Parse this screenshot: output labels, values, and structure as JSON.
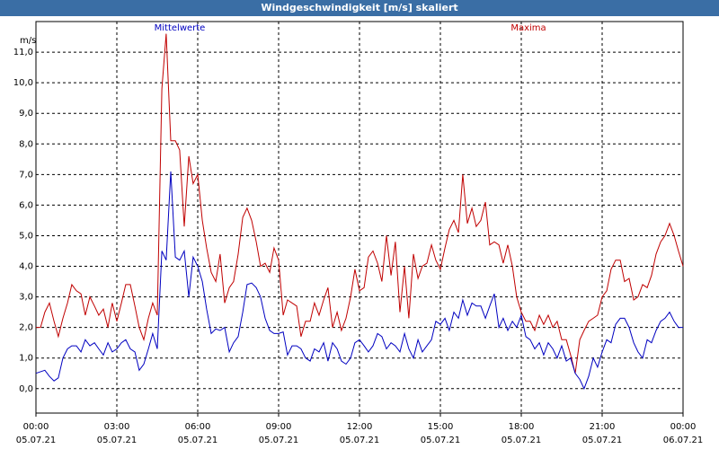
{
  "window": {
    "title": "Windgeschwindigkeit [m/s] skaliert"
  },
  "chart_data": {
    "type": "line",
    "title": "Windgeschwindigkeit [m/s] skaliert",
    "ylabel": "m/s",
    "ylim": [
      -0.8,
      12.0
    ],
    "yticks": [
      "0,0",
      "1,0",
      "2,0",
      "3,0",
      "4,0",
      "5,0",
      "6,0",
      "7,0",
      "8,0",
      "9,0",
      "10,0",
      "11,0"
    ],
    "ytick_values": [
      0,
      1,
      2,
      3,
      4,
      5,
      6,
      7,
      8,
      9,
      10,
      11
    ],
    "xlim": [
      0,
      24
    ],
    "xticks": [
      {
        "x": 0,
        "time": "00:00",
        "date": "05.07.21"
      },
      {
        "x": 3,
        "time": "03:00",
        "date": "05.07.21"
      },
      {
        "x": 6,
        "time": "06:00",
        "date": "05.07.21"
      },
      {
        "x": 9,
        "time": "09:00",
        "date": "05.07.21"
      },
      {
        "x": 12,
        "time": "12:00",
        "date": "05.07.21"
      },
      {
        "x": 15,
        "time": "15:00",
        "date": "05.07.21"
      },
      {
        "x": 18,
        "time": "18:00",
        "date": "05.07.21"
      },
      {
        "x": 21,
        "time": "21:00",
        "date": "05.07.21"
      },
      {
        "x": 24,
        "time": "00:00",
        "date": "06.07.21"
      }
    ],
    "grid": true,
    "series": [
      {
        "name": "Mittelwerte",
        "color": "#0000c0",
        "points": [
          [
            0,
            0.5
          ],
          [
            0.33,
            0.6
          ],
          [
            0.5,
            0.4
          ],
          [
            0.67,
            0.25
          ],
          [
            0.83,
            0.35
          ],
          [
            1.0,
            1.0
          ],
          [
            1.17,
            1.3
          ],
          [
            1.33,
            1.4
          ],
          [
            1.5,
            1.4
          ],
          [
            1.67,
            1.2
          ],
          [
            1.83,
            1.6
          ],
          [
            2.0,
            1.4
          ],
          [
            2.17,
            1.5
          ],
          [
            2.33,
            1.3
          ],
          [
            2.5,
            1.1
          ],
          [
            2.67,
            1.5
          ],
          [
            2.83,
            1.2
          ],
          [
            3.0,
            1.3
          ],
          [
            3.17,
            1.5
          ],
          [
            3.33,
            1.6
          ],
          [
            3.5,
            1.3
          ],
          [
            3.67,
            1.2
          ],
          [
            3.83,
            0.6
          ],
          [
            4.0,
            0.8
          ],
          [
            4.17,
            1.3
          ],
          [
            4.33,
            1.8
          ],
          [
            4.5,
            1.3
          ],
          [
            4.67,
            4.5
          ],
          [
            4.83,
            4.2
          ],
          [
            5.0,
            7.1
          ],
          [
            5.17,
            4.3
          ],
          [
            5.33,
            4.2
          ],
          [
            5.5,
            4.5
          ],
          [
            5.67,
            3.0
          ],
          [
            5.83,
            4.3
          ],
          [
            6.0,
            4.0
          ],
          [
            6.17,
            3.5
          ],
          [
            6.33,
            2.6
          ],
          [
            6.5,
            1.8
          ],
          [
            6.67,
            1.95
          ],
          [
            6.83,
            1.9
          ],
          [
            7.0,
            2.0
          ],
          [
            7.17,
            1.2
          ],
          [
            7.33,
            1.5
          ],
          [
            7.5,
            1.7
          ],
          [
            7.67,
            2.5
          ],
          [
            7.83,
            3.4
          ],
          [
            8.0,
            3.45
          ],
          [
            8.17,
            3.3
          ],
          [
            8.33,
            3.0
          ],
          [
            8.5,
            2.3
          ],
          [
            8.67,
            1.9
          ],
          [
            8.83,
            1.8
          ],
          [
            9.0,
            1.8
          ],
          [
            9.17,
            1.85
          ],
          [
            9.33,
            1.1
          ],
          [
            9.5,
            1.4
          ],
          [
            9.67,
            1.4
          ],
          [
            9.83,
            1.3
          ],
          [
            10.0,
            1.0
          ],
          [
            10.17,
            0.9
          ],
          [
            10.33,
            1.3
          ],
          [
            10.5,
            1.2
          ],
          [
            10.67,
            1.5
          ],
          [
            10.83,
            0.9
          ],
          [
            11.0,
            1.5
          ],
          [
            11.17,
            1.3
          ],
          [
            11.33,
            0.9
          ],
          [
            11.5,
            0.8
          ],
          [
            11.67,
            1.0
          ],
          [
            11.83,
            1.5
          ],
          [
            12.0,
            1.6
          ],
          [
            12.17,
            1.4
          ],
          [
            12.33,
            1.2
          ],
          [
            12.5,
            1.4
          ],
          [
            12.67,
            1.8
          ],
          [
            12.83,
            1.7
          ],
          [
            13.0,
            1.3
          ],
          [
            13.17,
            1.5
          ],
          [
            13.33,
            1.4
          ],
          [
            13.5,
            1.2
          ],
          [
            13.67,
            1.8
          ],
          [
            13.83,
            1.3
          ],
          [
            14.0,
            1.0
          ],
          [
            14.17,
            1.6
          ],
          [
            14.33,
            1.2
          ],
          [
            14.5,
            1.4
          ],
          [
            14.67,
            1.6
          ],
          [
            14.83,
            2.2
          ],
          [
            15.0,
            2.1
          ],
          [
            15.17,
            2.3
          ],
          [
            15.33,
            1.9
          ],
          [
            15.5,
            2.5
          ],
          [
            15.67,
            2.3
          ],
          [
            15.83,
            2.9
          ],
          [
            16.0,
            2.4
          ],
          [
            16.17,
            2.8
          ],
          [
            16.33,
            2.7
          ],
          [
            16.5,
            2.7
          ],
          [
            16.67,
            2.3
          ],
          [
            16.83,
            2.7
          ],
          [
            17.0,
            3.1
          ],
          [
            17.17,
            2.0
          ],
          [
            17.33,
            2.3
          ],
          [
            17.5,
            1.9
          ],
          [
            17.67,
            2.2
          ],
          [
            17.83,
            2.0
          ],
          [
            18.0,
            2.4
          ],
          [
            18.17,
            1.7
          ],
          [
            18.33,
            1.6
          ],
          [
            18.5,
            1.3
          ],
          [
            18.67,
            1.5
          ],
          [
            18.83,
            1.1
          ],
          [
            19.0,
            1.5
          ],
          [
            19.17,
            1.3
          ],
          [
            19.33,
            1.0
          ],
          [
            19.5,
            1.4
          ],
          [
            19.67,
            0.9
          ],
          [
            19.83,
            1.0
          ],
          [
            20.0,
            0.5
          ],
          [
            20.17,
            0.3
          ],
          [
            20.33,
            0.0
          ],
          [
            20.5,
            0.4
          ],
          [
            20.67,
            1.0
          ],
          [
            20.83,
            0.7
          ],
          [
            21.0,
            1.2
          ],
          [
            21.17,
            1.6
          ],
          [
            21.33,
            1.5
          ],
          [
            21.5,
            2.1
          ],
          [
            21.67,
            2.3
          ],
          [
            21.83,
            2.3
          ],
          [
            22.0,
            2.0
          ],
          [
            22.17,
            1.5
          ],
          [
            22.33,
            1.2
          ],
          [
            22.5,
            1.0
          ],
          [
            22.67,
            1.6
          ],
          [
            22.83,
            1.5
          ],
          [
            23.0,
            1.9
          ],
          [
            23.17,
            2.2
          ],
          [
            23.33,
            2.3
          ],
          [
            23.5,
            2.5
          ],
          [
            23.67,
            2.2
          ],
          [
            23.83,
            2.0
          ],
          [
            24.0,
            2.0
          ]
        ]
      },
      {
        "name": "Maxima",
        "color": "#c00000",
        "points": [
          [
            0,
            2.0
          ],
          [
            0.17,
            2.0
          ],
          [
            0.33,
            2.5
          ],
          [
            0.5,
            2.8
          ],
          [
            0.67,
            2.2
          ],
          [
            0.83,
            1.7
          ],
          [
            1.0,
            2.3
          ],
          [
            1.17,
            2.8
          ],
          [
            1.33,
            3.4
          ],
          [
            1.5,
            3.2
          ],
          [
            1.67,
            3.1
          ],
          [
            1.83,
            2.4
          ],
          [
            2.0,
            3.0
          ],
          [
            2.17,
            2.7
          ],
          [
            2.33,
            2.4
          ],
          [
            2.5,
            2.6
          ],
          [
            2.67,
            2.0
          ],
          [
            2.83,
            2.8
          ],
          [
            3.0,
            2.2
          ],
          [
            3.17,
            2.8
          ],
          [
            3.33,
            3.4
          ],
          [
            3.5,
            3.4
          ],
          [
            3.67,
            2.7
          ],
          [
            3.83,
            2.0
          ],
          [
            4.0,
            1.6
          ],
          [
            4.17,
            2.3
          ],
          [
            4.33,
            2.8
          ],
          [
            4.5,
            2.4
          ],
          [
            4.67,
            9.8
          ],
          [
            4.83,
            11.6
          ],
          [
            5.0,
            8.1
          ],
          [
            5.17,
            8.1
          ],
          [
            5.33,
            7.8
          ],
          [
            5.5,
            5.3
          ],
          [
            5.67,
            7.6
          ],
          [
            5.83,
            6.7
          ],
          [
            6.0,
            7.0
          ],
          [
            6.17,
            5.5
          ],
          [
            6.33,
            4.6
          ],
          [
            6.5,
            3.8
          ],
          [
            6.67,
            3.5
          ],
          [
            6.83,
            4.4
          ],
          [
            7.0,
            2.8
          ],
          [
            7.17,
            3.3
          ],
          [
            7.33,
            3.5
          ],
          [
            7.5,
            4.4
          ],
          [
            7.67,
            5.6
          ],
          [
            7.83,
            5.9
          ],
          [
            8.0,
            5.5
          ],
          [
            8.17,
            4.8
          ],
          [
            8.33,
            4.0
          ],
          [
            8.5,
            4.1
          ],
          [
            8.67,
            3.8
          ],
          [
            8.83,
            4.6
          ],
          [
            9.0,
            4.2
          ],
          [
            9.17,
            2.4
          ],
          [
            9.33,
            2.9
          ],
          [
            9.5,
            2.8
          ],
          [
            9.67,
            2.7
          ],
          [
            9.83,
            1.7
          ],
          [
            10.0,
            2.2
          ],
          [
            10.17,
            2.2
          ],
          [
            10.33,
            2.8
          ],
          [
            10.5,
            2.4
          ],
          [
            10.67,
            2.9
          ],
          [
            10.83,
            3.3
          ],
          [
            11.0,
            2.0
          ],
          [
            11.17,
            2.5
          ],
          [
            11.33,
            1.9
          ],
          [
            11.5,
            2.3
          ],
          [
            11.67,
            3.0
          ],
          [
            11.83,
            3.9
          ],
          [
            12.0,
            3.2
          ],
          [
            12.17,
            3.3
          ],
          [
            12.33,
            4.3
          ],
          [
            12.5,
            4.5
          ],
          [
            12.67,
            4.1
          ],
          [
            12.83,
            3.5
          ],
          [
            13.0,
            5.0
          ],
          [
            13.17,
            3.7
          ],
          [
            13.33,
            4.8
          ],
          [
            13.5,
            2.5
          ],
          [
            13.67,
            4.0
          ],
          [
            13.83,
            2.3
          ],
          [
            14.0,
            4.4
          ],
          [
            14.17,
            3.6
          ],
          [
            14.33,
            4.0
          ],
          [
            14.5,
            4.1
          ],
          [
            14.67,
            4.7
          ],
          [
            14.83,
            4.2
          ],
          [
            15.0,
            3.9
          ],
          [
            15.17,
            4.6
          ],
          [
            15.33,
            5.2
          ],
          [
            15.5,
            5.5
          ],
          [
            15.67,
            5.1
          ],
          [
            15.83,
            7.0
          ],
          [
            16.0,
            5.4
          ],
          [
            16.17,
            5.9
          ],
          [
            16.33,
            5.3
          ],
          [
            16.5,
            5.5
          ],
          [
            16.67,
            6.1
          ],
          [
            16.83,
            4.7
          ],
          [
            17.0,
            4.8
          ],
          [
            17.17,
            4.7
          ],
          [
            17.33,
            4.1
          ],
          [
            17.5,
            4.7
          ],
          [
            17.67,
            4.0
          ],
          [
            17.83,
            3.0
          ],
          [
            18.0,
            2.5
          ],
          [
            18.17,
            2.2
          ],
          [
            18.33,
            2.2
          ],
          [
            18.5,
            1.9
          ],
          [
            18.67,
            2.4
          ],
          [
            18.83,
            2.1
          ],
          [
            19.0,
            2.4
          ],
          [
            19.17,
            2.0
          ],
          [
            19.33,
            2.2
          ],
          [
            19.5,
            1.6
          ],
          [
            19.67,
            1.6
          ],
          [
            19.83,
            1.1
          ],
          [
            20.0,
            0.5
          ],
          [
            20.17,
            1.6
          ],
          [
            20.33,
            1.9
          ],
          [
            20.5,
            2.2
          ],
          [
            20.67,
            2.3
          ],
          [
            20.83,
            2.4
          ],
          [
            21.0,
            3.0
          ],
          [
            21.17,
            3.2
          ],
          [
            21.33,
            3.9
          ],
          [
            21.5,
            4.2
          ],
          [
            21.67,
            4.2
          ],
          [
            21.83,
            3.5
          ],
          [
            22.0,
            3.6
          ],
          [
            22.17,
            2.9
          ],
          [
            22.33,
            3.0
          ],
          [
            22.5,
            3.4
          ],
          [
            22.67,
            3.3
          ],
          [
            22.83,
            3.7
          ],
          [
            23.0,
            4.4
          ],
          [
            23.17,
            4.8
          ],
          [
            23.33,
            5.0
          ],
          [
            23.5,
            5.4
          ],
          [
            23.67,
            5.0
          ],
          [
            23.83,
            4.5
          ],
          [
            24.0,
            4.0
          ]
        ]
      }
    ]
  }
}
